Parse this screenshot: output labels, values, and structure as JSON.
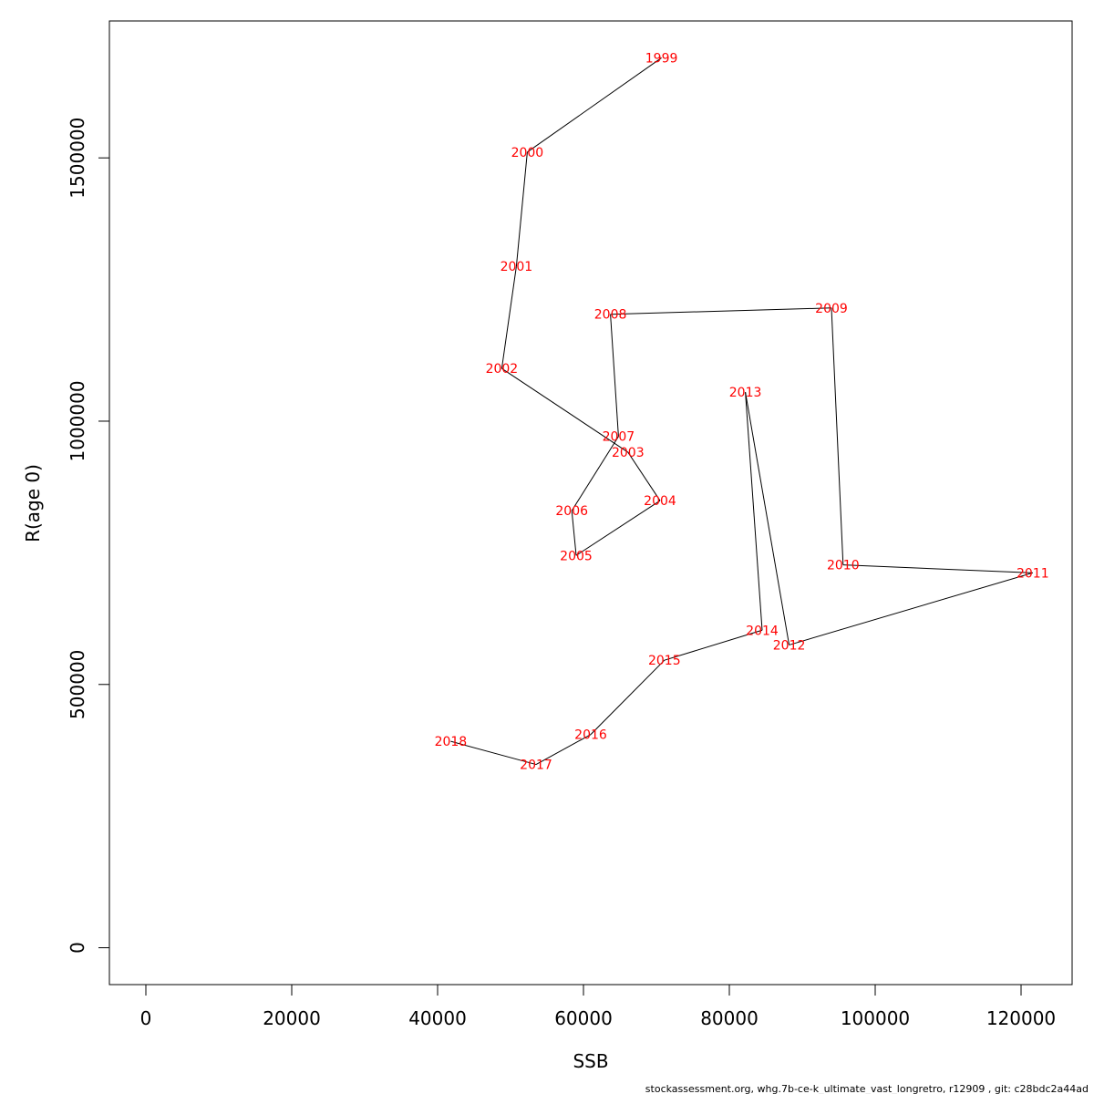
{
  "chart_data": {
    "type": "line",
    "xlabel": "SSB",
    "ylabel": "R(age 0)",
    "xlim": [
      -5000,
      127000
    ],
    "ylim": [
      -70000,
      1760000
    ],
    "x_ticks": [
      0,
      20000,
      40000,
      60000,
      80000,
      100000,
      120000
    ],
    "x_tick_labels": [
      "0",
      "20000",
      "40000",
      "60000",
      "80000",
      "100000",
      "120000"
    ],
    "y_ticks": [
      0,
      500000,
      1000000,
      1500000
    ],
    "y_tick_labels": [
      "0",
      "500000",
      "1000000",
      "1500000"
    ],
    "grid": false,
    "line_color": "#000000",
    "label_color": "#ff0000",
    "points": [
      {
        "label": "1999",
        "x": 70700,
        "y": 1690000
      },
      {
        "label": "2000",
        "x": 52300,
        "y": 1511000
      },
      {
        "label": "2001",
        "x": 50800,
        "y": 1294000
      },
      {
        "label": "2002",
        "x": 48800,
        "y": 1100000
      },
      {
        "label": "2003",
        "x": 66100,
        "y": 941000
      },
      {
        "label": "2004",
        "x": 70500,
        "y": 849000
      },
      {
        "label": "2005",
        "x": 59000,
        "y": 745000
      },
      {
        "label": "2006",
        "x": 58400,
        "y": 830000
      },
      {
        "label": "2007",
        "x": 64800,
        "y": 971000
      },
      {
        "label": "2008",
        "x": 63700,
        "y": 1203000
      },
      {
        "label": "2009",
        "x": 94000,
        "y": 1215000
      },
      {
        "label": "2010",
        "x": 95600,
        "y": 727000
      },
      {
        "label": "2011",
        "x": 121600,
        "y": 712000
      },
      {
        "label": "2012",
        "x": 88200,
        "y": 575000
      },
      {
        "label": "2013",
        "x": 82200,
        "y": 1055000
      },
      {
        "label": "2014",
        "x": 84500,
        "y": 603000
      },
      {
        "label": "2015",
        "x": 71100,
        "y": 546000
      },
      {
        "label": "2016",
        "x": 61000,
        "y": 405000
      },
      {
        "label": "2017",
        "x": 53500,
        "y": 348000
      },
      {
        "label": "2018",
        "x": 41800,
        "y": 392000
      }
    ]
  },
  "footer_text": "stockassessment.org, whg.7b-ce-k_ultimate_vast_longretro, r12909 , git: c28bdc2a44ad"
}
